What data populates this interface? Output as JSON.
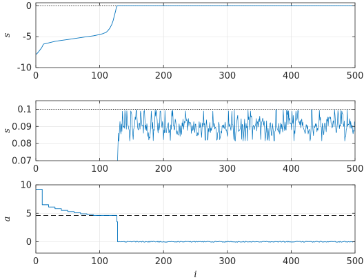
{
  "chart_data": [
    {
      "type": "line",
      "title": "",
      "xlabel": "",
      "ylabel": "s",
      "xlim": [
        0,
        500
      ],
      "ylim": [
        -10,
        0.5
      ],
      "xticks": [
        0,
        100,
        200,
        300,
        400,
        500
      ],
      "yticks": [
        -10,
        -5,
        0
      ],
      "ytick_labels": [
        "-10",
        "-5",
        "0"
      ],
      "grid": true,
      "reference_lines": [
        {
          "y": 0,
          "style": "dotted",
          "color": "#000000"
        }
      ],
      "series": [
        {
          "color": "#0072BD",
          "x": [
            0,
            3,
            6,
            9,
            12,
            20,
            30,
            40,
            50,
            60,
            70,
            80,
            90,
            100,
            105,
            110,
            113,
            116,
            119,
            121,
            123,
            125,
            126,
            127,
            128,
            140,
            200,
            300,
            400,
            500
          ],
          "y": [
            -7.9,
            -7.6,
            -7.2,
            -6.8,
            -6.2,
            -6.0,
            -5.75,
            -5.6,
            -5.45,
            -5.3,
            -5.15,
            -5.0,
            -4.85,
            -4.65,
            -4.5,
            -4.3,
            -4.0,
            -3.6,
            -3.0,
            -2.4,
            -1.6,
            -0.8,
            -0.3,
            -0.05,
            0,
            0,
            0,
            0,
            0,
            0
          ]
        }
      ]
    },
    {
      "type": "line",
      "title": "",
      "xlabel": "",
      "ylabel": "s",
      "xlim": [
        0,
        500
      ],
      "ylim": [
        0.07,
        0.105
      ],
      "xticks": [
        0,
        100,
        200,
        300,
        400,
        500
      ],
      "yticks": [
        0.07,
        0.08,
        0.09,
        0.1
      ],
      "ytick_labels": [
        "0.07",
        "0.08",
        "0.09",
        "0.1"
      ],
      "grid": true,
      "reference_lines": [
        {
          "y": 0.1,
          "style": "dotted",
          "color": "#000000"
        }
      ],
      "series": [
        {
          "color": "#0072BD",
          "x_start": 128,
          "x_end": 500,
          "y_min": 0.0815,
          "y_max": 0.0998,
          "y_mean": 0.09,
          "x_initial": [
            128,
            128.6,
            129.2
          ],
          "y_initial": [
            0.07,
            0.078,
            0.086
          ]
        }
      ]
    },
    {
      "type": "line",
      "title": "",
      "xlabel": "i",
      "ylabel": "a",
      "xlim": [
        0,
        500
      ],
      "ylim": [
        -2,
        10
      ],
      "xticks": [
        0,
        100,
        200,
        300,
        400,
        500
      ],
      "yticks": [
        0,
        5,
        10
      ],
      "ytick_labels": [
        "0",
        "5",
        "10"
      ],
      "grid": true,
      "reference_lines": [
        {
          "y": 4.6,
          "style": "dashed",
          "color": "#000000"
        }
      ],
      "series": [
        {
          "color": "#0072BD",
          "x": [
            0,
            10,
            10,
            20,
            20,
            30,
            30,
            40,
            40,
            50,
            50,
            60,
            60,
            70,
            70,
            80,
            80,
            90,
            90,
            127,
            127,
            128,
            128,
            500
          ],
          "y": [
            9.2,
            9.2,
            6.5,
            6.5,
            6.1,
            6.1,
            5.8,
            5.8,
            5.5,
            5.5,
            5.3,
            5.3,
            5.1,
            5.1,
            4.9,
            4.9,
            4.75,
            4.75,
            4.62,
            4.62,
            3.5,
            3.5,
            0,
            0
          ]
        }
      ]
    }
  ]
}
